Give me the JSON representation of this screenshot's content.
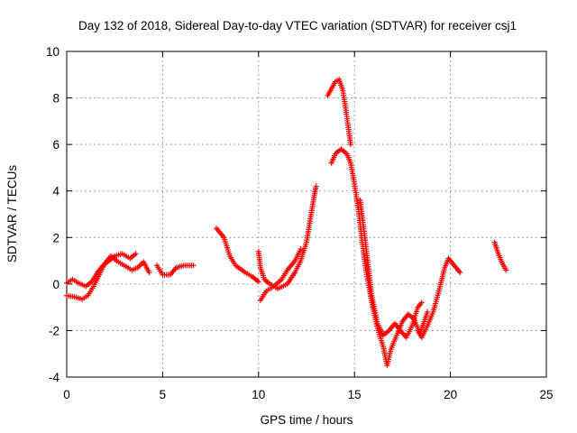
{
  "chart_data": {
    "type": "scatter",
    "title": "Day 132 of 2018, Sidereal Day-to-day VTEC variation (SDTVAR) for receiver csj1",
    "xlabel": "GPS time / hours",
    "ylabel": "SDTVAR / TECUs",
    "xlim": [
      0,
      25
    ],
    "ylim": [
      -4,
      10
    ],
    "xticks": [
      "0",
      "5",
      "10",
      "15",
      "20",
      "25"
    ],
    "yticks": [
      "-4",
      "-2",
      "0",
      "2",
      "4",
      "6",
      "8",
      "10"
    ],
    "grid": true,
    "marker": "+",
    "color": "#ff0000",
    "tracks": [
      [
        [
          0.0,
          0.05
        ],
        [
          0.3,
          0.2
        ],
        [
          0.6,
          0.05
        ],
        [
          1.0,
          -0.1
        ],
        [
          1.3,
          0.1
        ],
        [
          1.6,
          0.5
        ],
        [
          1.9,
          0.8
        ],
        [
          2.2,
          1.0
        ],
        [
          2.5,
          1.2
        ],
        [
          2.9,
          1.3
        ],
        [
          3.3,
          1.1
        ],
        [
          3.6,
          1.3
        ]
      ],
      [
        [
          0.0,
          -0.5
        ],
        [
          0.4,
          -0.55
        ],
        [
          0.8,
          -0.65
        ],
        [
          1.1,
          -0.5
        ],
        [
          1.4,
          -0.1
        ],
        [
          1.7,
          0.4
        ],
        [
          2.0,
          0.9
        ],
        [
          2.3,
          1.2
        ],
        [
          2.6,
          1.0
        ],
        [
          3.0,
          0.8
        ],
        [
          3.4,
          0.6
        ],
        [
          3.7,
          0.7
        ],
        [
          4.0,
          0.95
        ],
        [
          4.3,
          0.5
        ]
      ],
      [
        [
          4.7,
          0.8
        ],
        [
          5.0,
          0.4
        ],
        [
          5.4,
          0.4
        ],
        [
          5.7,
          0.7
        ],
        [
          6.1,
          0.8
        ],
        [
          6.6,
          0.8
        ]
      ],
      [
        [
          7.8,
          2.4
        ],
        [
          8.2,
          2.0
        ],
        [
          8.5,
          1.2
        ],
        [
          8.8,
          0.8
        ],
        [
          9.3,
          0.5
        ],
        [
          9.7,
          0.3
        ],
        [
          10.0,
          0.1
        ]
      ],
      [
        [
          10.0,
          1.4
        ],
        [
          10.1,
          0.7
        ],
        [
          10.3,
          0.2
        ],
        [
          10.6,
          0.0
        ],
        [
          11.0,
          -0.2
        ],
        [
          11.5,
          0.0
        ],
        [
          11.9,
          0.5
        ],
        [
          12.2,
          1.0
        ],
        [
          12.5,
          1.8
        ],
        [
          12.7,
          2.8
        ],
        [
          12.9,
          3.8
        ],
        [
          13.0,
          4.2
        ]
      ],
      [
        [
          10.1,
          -0.7
        ],
        [
          10.4,
          -0.3
        ],
        [
          10.8,
          -0.1
        ],
        [
          11.2,
          0.2
        ],
        [
          11.5,
          0.6
        ],
        [
          11.9,
          1.0
        ],
        [
          12.2,
          1.5
        ]
      ],
      [
        [
          13.6,
          8.1
        ],
        [
          13.8,
          8.4
        ],
        [
          14.0,
          8.7
        ],
        [
          14.2,
          8.8
        ],
        [
          14.4,
          8.3
        ],
        [
          14.6,
          7.2
        ],
        [
          14.8,
          6.0
        ]
      ],
      [
        [
          13.8,
          5.2
        ],
        [
          14.0,
          5.6
        ],
        [
          14.3,
          5.8
        ],
        [
          14.6,
          5.6
        ],
        [
          14.8,
          5.2
        ],
        [
          15.0,
          4.3
        ],
        [
          15.2,
          3.2
        ],
        [
          15.4,
          1.8
        ],
        [
          15.6,
          0.6
        ],
        [
          15.9,
          -0.8
        ],
        [
          16.2,
          -1.9
        ],
        [
          16.5,
          -2.7
        ],
        [
          16.7,
          -3.5
        ],
        [
          16.9,
          -2.8
        ],
        [
          17.2,
          -2.2
        ],
        [
          17.5,
          -1.6
        ],
        [
          17.8,
          -1.3
        ],
        [
          18.1,
          -1.5
        ],
        [
          18.4,
          -2.1
        ],
        [
          18.6,
          -1.7
        ],
        [
          18.8,
          -1.2
        ]
      ],
      [
        [
          15.3,
          3.6
        ],
        [
          15.6,
          1.6
        ],
        [
          15.9,
          -0.5
        ],
        [
          16.2,
          -1.7
        ],
        [
          16.5,
          -2.2
        ],
        [
          16.8,
          -2.0
        ],
        [
          17.1,
          -1.7
        ],
        [
          17.4,
          -2.0
        ],
        [
          17.7,
          -2.3
        ],
        [
          18.0,
          -1.8
        ],
        [
          18.3,
          -1.0
        ],
        [
          18.5,
          -0.8
        ]
      ],
      [
        [
          18.3,
          -2.0
        ],
        [
          18.5,
          -2.3
        ],
        [
          18.8,
          -1.8
        ],
        [
          19.1,
          -1.2
        ],
        [
          19.4,
          -0.3
        ],
        [
          19.7,
          0.7
        ],
        [
          19.9,
          1.1
        ],
        [
          20.2,
          0.8
        ],
        [
          20.5,
          0.5
        ]
      ],
      [
        [
          22.3,
          1.8
        ],
        [
          22.5,
          1.3
        ],
        [
          22.7,
          0.9
        ],
        [
          22.9,
          0.6
        ]
      ]
    ]
  }
}
